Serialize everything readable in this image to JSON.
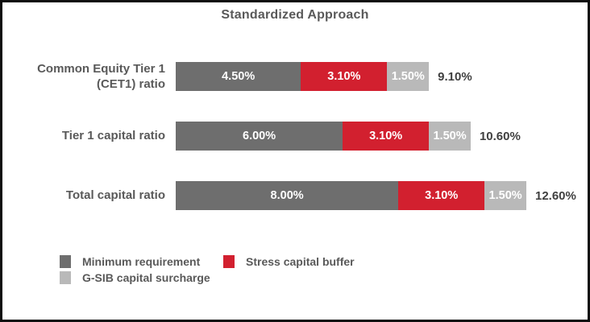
{
  "frame": {
    "background": "#ffffff",
    "border_color": "#0d0d0d"
  },
  "chart_data": {
    "type": "bar",
    "orientation": "horizontal",
    "stacked": true,
    "title": "Standardized Approach",
    "categories": [
      "Common Equity Tier 1\n(CET1) ratio",
      "Tier 1 capital ratio",
      "Total capital ratio"
    ],
    "series": [
      {
        "name": "Minimum requirement",
        "color": "#6e6e6e",
        "values": [
          4.5,
          6.0,
          8.0
        ],
        "labels": [
          "4.50%",
          "6.00%",
          "8.00%"
        ]
      },
      {
        "name": "Stress capital buffer",
        "color": "#d2202f",
        "values": [
          3.1,
          3.1,
          3.1
        ],
        "labels": [
          "3.10%",
          "3.10%",
          "3.10%"
        ]
      },
      {
        "name": "G-SIB capital surcharge",
        "color": "#b9b9b9",
        "values": [
          1.5,
          1.5,
          1.5
        ],
        "labels": [
          "1.50%",
          "1.50%",
          "1.50%"
        ]
      }
    ],
    "totals": [
      {
        "value": 9.1,
        "label": "9.10%"
      },
      {
        "value": 10.6,
        "label": "10.60%"
      },
      {
        "value": 12.6,
        "label": "12.60%"
      }
    ],
    "xlim": [
      0,
      12.6
    ],
    "grid": false,
    "legend_position": "bottom",
    "value_label_color": "#ffffff",
    "total_label_color": "#3f3f3f"
  }
}
